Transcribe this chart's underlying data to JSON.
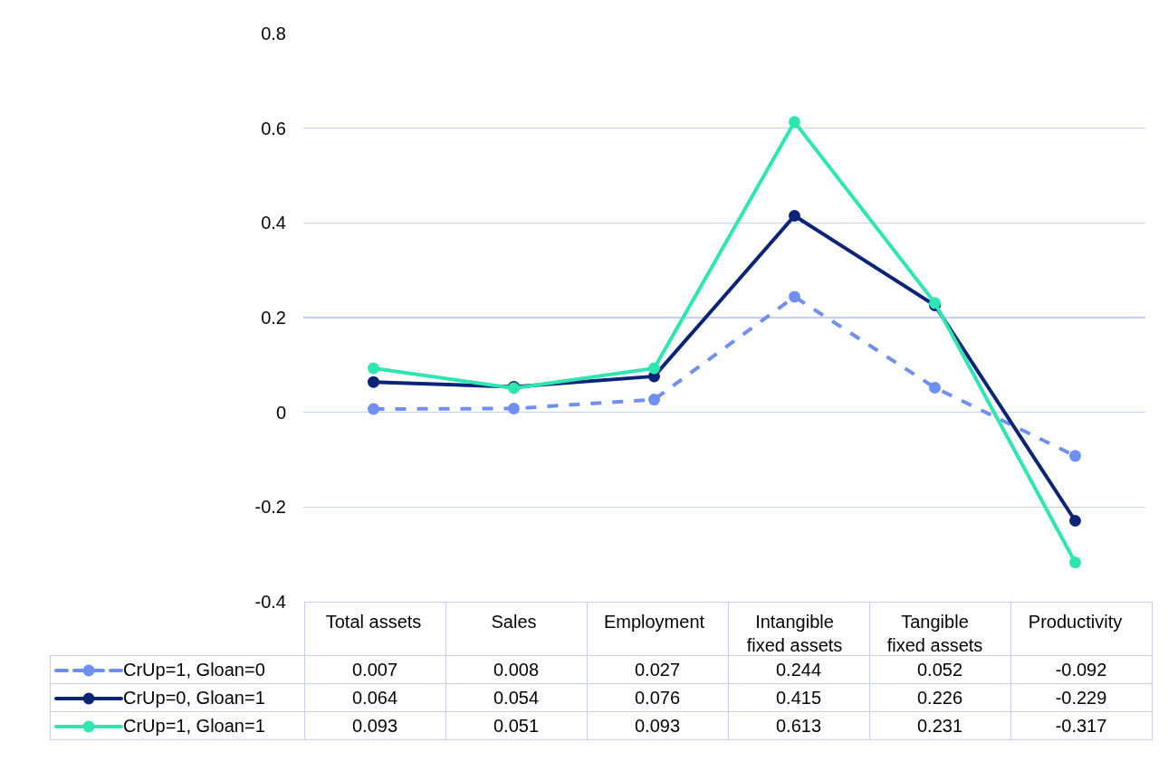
{
  "chart_data": {
    "type": "line",
    "categories": [
      "Total assets",
      "Sales",
      "Employment",
      "Intangible fixed assets",
      "Tangible fixed assets",
      "Productivity"
    ],
    "series": [
      {
        "name": "CrUp=1, Gloan=0",
        "color": "#6f8ff2",
        "line_style": "dashed",
        "values": [
          0.007,
          0.008,
          0.027,
          0.244,
          0.052,
          -0.092
        ]
      },
      {
        "name": "CrUp=0, Gloan=1",
        "color": "#0b247a",
        "line_style": "solid",
        "values": [
          0.064,
          0.054,
          0.076,
          0.415,
          0.226,
          -0.229
        ]
      },
      {
        "name": "CrUp=1, Gloan=1",
        "color": "#2ee6b0",
        "line_style": "solid",
        "values": [
          0.093,
          0.051,
          0.093,
          0.613,
          0.231,
          -0.317
        ]
      }
    ],
    "ylim": [
      -0.4,
      0.8
    ],
    "yticks": [
      -0.4,
      -0.2,
      0,
      0.2,
      0.4,
      0.6,
      0.8
    ],
    "grid": "y",
    "marker": "circle",
    "legend": "bottom",
    "data_labels": true
  }
}
